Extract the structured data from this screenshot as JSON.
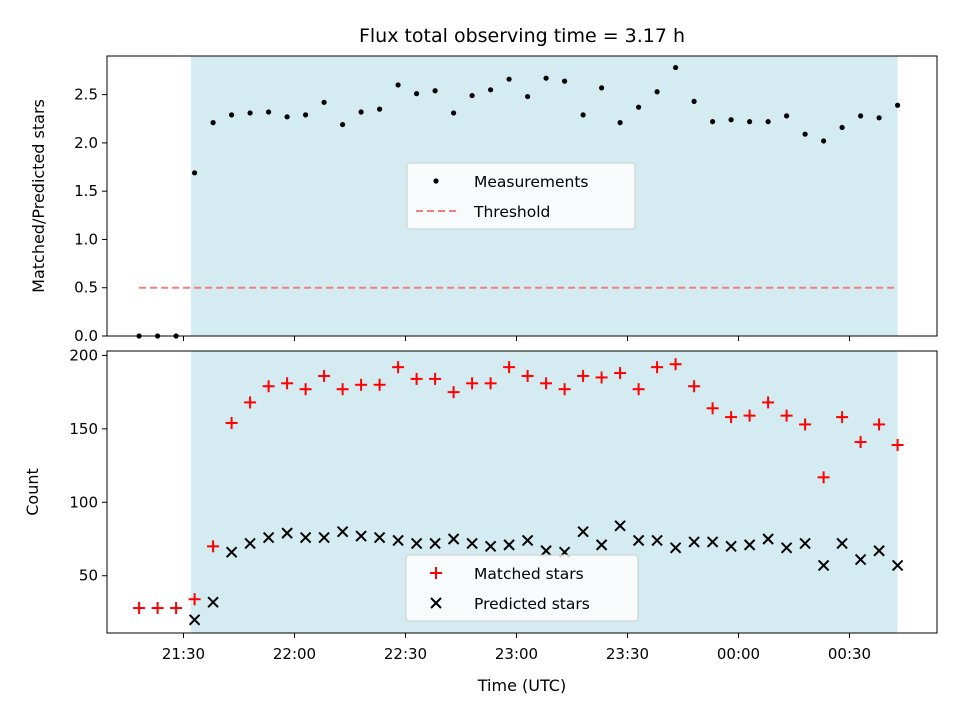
{
  "chart_data": [
    {
      "type": "scatter",
      "title": "Flux total observing time = 3.17 h",
      "ylabel": "Matched/Predicted stars",
      "xlabel": "",
      "ylim": [
        0,
        2.9
      ],
      "yticks": [
        0.0,
        0.5,
        1.0,
        1.5,
        2.0,
        2.5
      ],
      "ytick_labels": [
        "0.0",
        "0.5",
        "1.0",
        "1.5",
        "2.0",
        "2.5"
      ],
      "grid": false,
      "legend_position": "center",
      "shaded_interval": [
        "21:32",
        "00:43"
      ],
      "colors": {
        "shade": "#d4ebf1",
        "threshold": "#f08080",
        "measurements": "#000000"
      },
      "series": [
        {
          "name": "Measurements",
          "marker": "dot",
          "x": [
            "21:18",
            "21:23",
            "21:28",
            "21:33",
            "21:38",
            "21:43",
            "21:48",
            "21:53",
            "21:58",
            "22:03",
            "22:08",
            "22:13",
            "22:18",
            "22:23",
            "22:28",
            "22:33",
            "22:38",
            "22:43",
            "22:48",
            "22:53",
            "22:58",
            "23:03",
            "23:08",
            "23:13",
            "23:18",
            "23:23",
            "23:28",
            "23:33",
            "23:38",
            "23:43",
            "23:48",
            "23:53",
            "23:58",
            "00:03",
            "00:08",
            "00:13",
            "00:18",
            "00:23",
            "00:28",
            "00:33",
            "00:38",
            "00:43"
          ],
          "y": [
            0.0,
            0.0,
            0.0,
            1.69,
            2.21,
            2.29,
            2.31,
            2.32,
            2.27,
            2.29,
            2.42,
            2.19,
            2.32,
            2.35,
            2.6,
            2.51,
            2.54,
            2.31,
            2.49,
            2.55,
            2.66,
            2.48,
            2.67,
            2.64,
            2.29,
            2.57,
            2.21,
            2.37,
            2.53,
            2.78,
            2.43,
            2.22,
            2.24,
            2.22,
            2.22,
            2.28,
            2.09,
            2.02,
            2.16,
            2.28,
            2.26,
            2.39
          ]
        },
        {
          "name": "Threshold",
          "marker": "dashed-line",
          "x": [
            "21:18",
            "00:43"
          ],
          "y": [
            0.5,
            0.5
          ]
        }
      ]
    },
    {
      "type": "scatter",
      "title": "",
      "ylabel": "Count",
      "xlabel": "Time (UTC)",
      "ylim": [
        11,
        203
      ],
      "yticks": [
        50,
        100,
        150,
        200
      ],
      "ytick_labels": [
        "50",
        "100",
        "150",
        "200"
      ],
      "xticks": [
        "21:30",
        "22:00",
        "22:30",
        "23:00",
        "23:30",
        "00:00",
        "00:30"
      ],
      "grid": false,
      "legend_position": "bottom-center",
      "shaded_interval": [
        "21:32",
        "00:43"
      ],
      "colors": {
        "shade": "#d4ebf1",
        "matched": "#ff0000",
        "predicted": "#000000"
      },
      "series": [
        {
          "name": "Matched stars",
          "marker": "plus",
          "x": [
            "21:18",
            "21:23",
            "21:28",
            "21:33",
            "21:38",
            "21:43",
            "21:48",
            "21:53",
            "21:58",
            "22:03",
            "22:08",
            "22:13",
            "22:18",
            "22:23",
            "22:28",
            "22:33",
            "22:38",
            "22:43",
            "22:48",
            "22:53",
            "22:58",
            "23:03",
            "23:08",
            "23:13",
            "23:18",
            "23:23",
            "23:28",
            "23:33",
            "23:38",
            "23:43",
            "23:48",
            "23:53",
            "23:58",
            "00:03",
            "00:08",
            "00:13",
            "00:18",
            "00:23",
            "00:28",
            "00:33",
            "00:38",
            "00:43"
          ],
          "y": [
            28,
            28,
            28,
            34,
            70,
            154,
            168,
            179,
            181,
            177,
            186,
            177,
            180,
            180,
            192,
            184,
            184,
            175,
            181,
            181,
            192,
            186,
            181,
            177,
            186,
            185,
            188,
            177,
            192,
            194,
            179,
            164,
            158,
            159,
            168,
            159,
            153,
            117,
            158,
            141,
            153,
            139
          ]
        },
        {
          "name": "Predicted stars",
          "marker": "x",
          "x": [
            "21:33",
            "21:38",
            "21:43",
            "21:48",
            "21:53",
            "21:58",
            "22:03",
            "22:08",
            "22:13",
            "22:18",
            "22:23",
            "22:28",
            "22:33",
            "22:38",
            "22:43",
            "22:48",
            "22:53",
            "22:58",
            "23:03",
            "23:08",
            "23:13",
            "23:18",
            "23:23",
            "23:28",
            "23:33",
            "23:38",
            "23:43",
            "23:48",
            "23:53",
            "23:58",
            "00:03",
            "00:08",
            "00:13",
            "00:18",
            "00:23",
            "00:28",
            "00:33",
            "00:38",
            "00:43"
          ],
          "y": [
            20,
            32,
            66,
            72,
            76,
            79,
            76,
            76,
            80,
            77,
            76,
            74,
            72,
            72,
            75,
            72,
            70,
            71,
            74,
            67,
            66,
            80,
            71,
            84,
            74,
            74,
            69,
            73,
            73,
            70,
            71,
            75,
            69,
            72,
            57,
            72,
            61,
            67,
            57
          ]
        }
      ]
    }
  ]
}
